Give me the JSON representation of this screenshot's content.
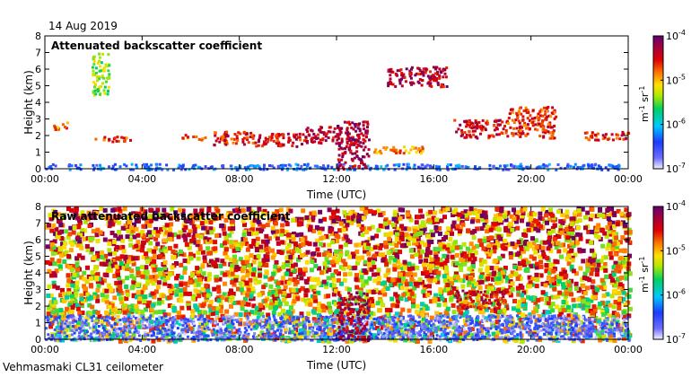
{
  "date_label": "14 Aug 2019",
  "footer_label": "Vehmasmaki CL31 ceilometer",
  "chart_data": [
    {
      "type": "heatmap",
      "title": "Attenuated backscatter coefficient",
      "xlabel": "Time (UTC)",
      "ylabel": "Height (km)",
      "x_ticks": [
        "00:00",
        "04:00",
        "08:00",
        "12:00",
        "16:00",
        "20:00",
        "00:00"
      ],
      "y_ticks": [
        "0",
        "1",
        "2",
        "3",
        "4",
        "5",
        "6",
        "7",
        "8"
      ],
      "xlim_hours": [
        0,
        24
      ],
      "ylim_km": [
        0,
        8
      ],
      "colorbar": {
        "ticks": [
          {
            "base": "10",
            "exp": "-4",
            "value": 0.0001
          },
          {
            "base": "10",
            "exp": "-5",
            "value": 1e-05
          },
          {
            "base": "10",
            "exp": "-6",
            "value": 1e-06
          },
          {
            "base": "10",
            "exp": "-7",
            "value": 1e-07
          }
        ],
        "unit_m": "m",
        "unit_m_exp": "-1",
        "unit_sr": "sr",
        "unit_sr_exp": "-1",
        "scale": "log"
      },
      "features": [
        {
          "name": "boundary-layer",
          "h0": 0,
          "h1": 24,
          "z0": 0.0,
          "z1": 0.35,
          "level": 0.22
        },
        {
          "name": "cloud-0100",
          "h0": 0.3,
          "h1": 0.9,
          "z0": 2.4,
          "z1": 2.9,
          "level": 0.72
        },
        {
          "name": "cloud-0230",
          "h0": 2.0,
          "h1": 3.6,
          "z0": 1.7,
          "z1": 2.0,
          "level": 0.8
        },
        {
          "name": "cloud-0500",
          "h0": 5.6,
          "h1": 6.6,
          "z0": 1.8,
          "z1": 2.1,
          "level": 0.75
        },
        {
          "name": "cloud-0730",
          "h0": 6.9,
          "h1": 8.6,
          "z0": 1.5,
          "z1": 2.3,
          "level": 0.82
        },
        {
          "name": "cloud-1000",
          "h0": 8.6,
          "h1": 10.6,
          "z0": 1.4,
          "z1": 2.2,
          "level": 0.84
        },
        {
          "name": "cloud-1130",
          "h0": 10.6,
          "h1": 12.0,
          "z0": 1.6,
          "z1": 2.6,
          "level": 0.86
        },
        {
          "name": "rain-1200",
          "h0": 12.0,
          "h1": 13.3,
          "z0": 0.0,
          "z1": 2.9,
          "level": 0.9
        },
        {
          "name": "cloud-1400",
          "h0": 13.3,
          "h1": 15.5,
          "z0": 1.0,
          "z1": 1.4,
          "level": 0.7
        },
        {
          "name": "cloud-1700",
          "h0": 16.8,
          "h1": 19.0,
          "z0": 1.9,
          "z1": 3.0,
          "level": 0.84
        },
        {
          "name": "cloud-2000",
          "h0": 19.0,
          "h1": 21.0,
          "z0": 1.9,
          "z1": 3.8,
          "level": 0.8
        },
        {
          "name": "cloud-2230",
          "h0": 22.0,
          "h1": 24.0,
          "z0": 1.8,
          "z1": 2.3,
          "level": 0.8
        },
        {
          "name": "high-layer-0230",
          "h0": 1.9,
          "h1": 2.6,
          "z0": 4.5,
          "z1": 7.0,
          "level": 0.55
        },
        {
          "name": "high-layer-1500",
          "h0": 14.0,
          "h1": 16.5,
          "z0": 5.0,
          "z1": 6.2,
          "level": 0.88
        }
      ]
    },
    {
      "type": "heatmap",
      "title": "Raw attenuated backscatter coefficient",
      "xlabel": "Time (UTC)",
      "ylabel": "Height (km)",
      "x_ticks": [
        "00:00",
        "04:00",
        "08:00",
        "12:00",
        "16:00",
        "20:00",
        "00:00"
      ],
      "y_ticks": [
        "0",
        "1",
        "2",
        "3",
        "4",
        "5",
        "6",
        "7",
        "8"
      ],
      "xlim_hours": [
        0,
        24
      ],
      "ylim_km": [
        0,
        8
      ],
      "colorbar": {
        "ticks": [
          {
            "base": "10",
            "exp": "-4",
            "value": 0.0001
          },
          {
            "base": "10",
            "exp": "-5",
            "value": 1e-05
          },
          {
            "base": "10",
            "exp": "-6",
            "value": 1e-06
          },
          {
            "base": "10",
            "exp": "-7",
            "value": 1e-07
          }
        ],
        "unit_m": "m",
        "unit_m_exp": "-1",
        "unit_sr": "sr",
        "unit_sr_exp": "-1",
        "scale": "log"
      },
      "features": [
        {
          "name": "noise-field",
          "h0": 0,
          "h1": 24,
          "z0": 0.0,
          "z1": 8.0,
          "level": 0.55
        },
        {
          "name": "low-noise-surface",
          "h0": 0,
          "h1": 24,
          "z0": 0.0,
          "z1": 1.5,
          "level": 0.12
        },
        {
          "name": "rain-1200",
          "h0": 12.0,
          "h1": 13.3,
          "z0": 0.0,
          "z1": 2.9,
          "level": 0.9
        },
        {
          "name": "cloud-1700",
          "h0": 16.8,
          "h1": 19.0,
          "z0": 1.9,
          "z1": 3.0,
          "level": 0.84
        }
      ]
    }
  ]
}
